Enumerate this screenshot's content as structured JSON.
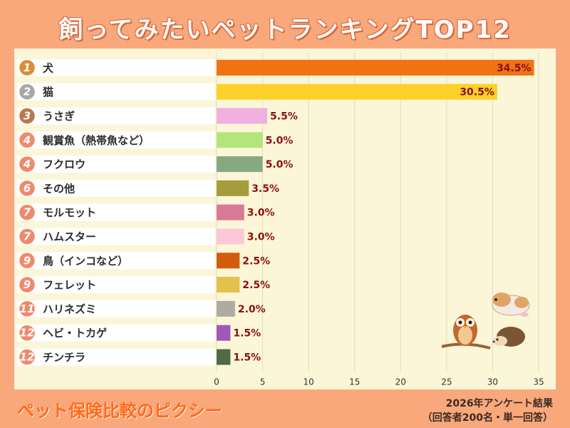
{
  "header": {
    "title": "飼ってみたいペットランキングTOP12"
  },
  "footer": {
    "brand": "ペット保険比較のピクシー",
    "note_line1": "2026年アンケート結果",
    "note_line2": "（回答者200名・単一回答）"
  },
  "chart_data": {
    "type": "bar",
    "orientation": "horizontal",
    "title": "飼ってみたいペットランキングTOP12",
    "xlim": [
      0,
      35
    ],
    "xticks": [
      "0",
      "5",
      "10",
      "15",
      "20",
      "25",
      "30",
      "35"
    ],
    "grid": true,
    "unit": "%",
    "rows": [
      {
        "rank": "1",
        "label": "犬",
        "value": 34.5,
        "value_label": "34.5%",
        "color": "#f07212",
        "badge": "#d98f35"
      },
      {
        "rank": "2",
        "label": "猫",
        "value": 30.5,
        "value_label": "30.5%",
        "color": "#fcd12a",
        "badge": "#a7a7a7"
      },
      {
        "rank": "3",
        "label": "うさぎ",
        "value": 5.5,
        "value_label": "5.5%",
        "color": "#f0b0e0",
        "badge": "#b8784e"
      },
      {
        "rank": "4",
        "label": "観賞魚（熱帯魚など）",
        "value": 5.0,
        "value_label": "5.0%",
        "color": "#b2e67a",
        "badge": "#ee8a6c"
      },
      {
        "rank": "4",
        "label": "フクロウ",
        "value": 5.0,
        "value_label": "5.0%",
        "color": "#87a981",
        "badge": "#ee8a6c"
      },
      {
        "rank": "6",
        "label": "その他",
        "value": 3.5,
        "value_label": "3.5%",
        "color": "#a69c3c",
        "badge": "#ee8a6c"
      },
      {
        "rank": "7",
        "label": "モルモット",
        "value": 3.0,
        "value_label": "3.0%",
        "color": "#d97a99",
        "badge": "#ee8a6c"
      },
      {
        "rank": "7",
        "label": "ハムスター",
        "value": 3.0,
        "value_label": "3.0%",
        "color": "#fbc9d6",
        "badge": "#ee8a6c"
      },
      {
        "rank": "9",
        "label": "鳥（インコなど）",
        "value": 2.5,
        "value_label": "2.5%",
        "color": "#d15c0c",
        "badge": "#ee8a6c"
      },
      {
        "rank": "9",
        "label": "フェレット",
        "value": 2.5,
        "value_label": "2.5%",
        "color": "#e2c24a",
        "badge": "#ee8a6c"
      },
      {
        "rank": "11",
        "label": "ハリネズミ",
        "value": 2.0,
        "value_label": "2.0%",
        "color": "#aeaba0",
        "badge": "#ee8a6c"
      },
      {
        "rank": "12",
        "label": "ヘビ・トカゲ",
        "value": 1.5,
        "value_label": "1.5%",
        "color": "#a159b8",
        "badge": "#ee8a6c"
      },
      {
        "rank": "12",
        "label": "チンチラ",
        "value": 1.5,
        "value_label": "1.5%",
        "color": "#4f6b46",
        "badge": "#ee8a6c"
      }
    ]
  }
}
